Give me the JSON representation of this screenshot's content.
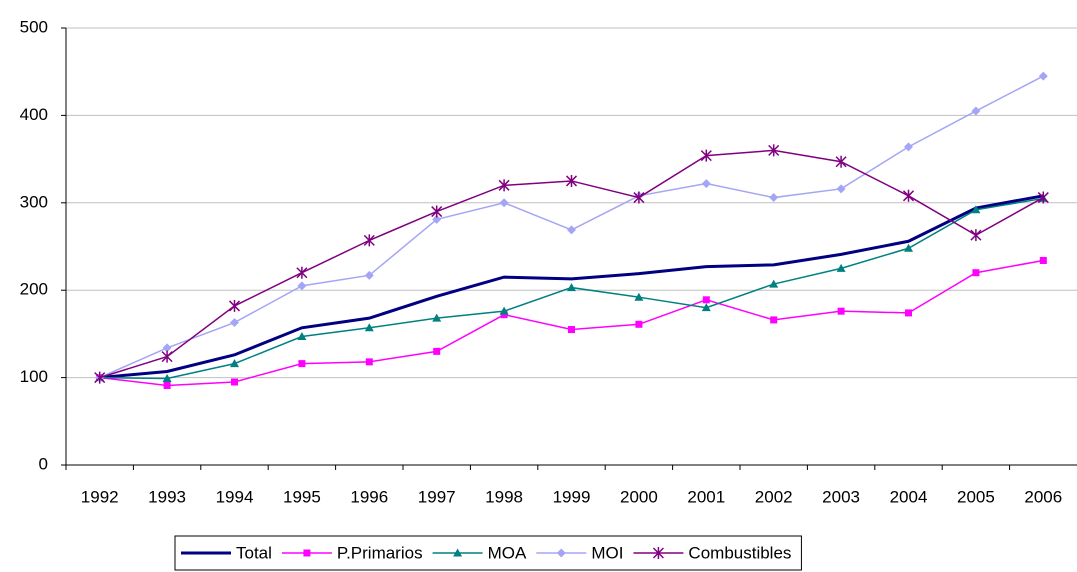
{
  "chart_data": {
    "type": "line",
    "categories": [
      "1992",
      "1993",
      "1994",
      "1995",
      "1996",
      "1997",
      "1998",
      "1999",
      "2000",
      "2001",
      "2002",
      "2003",
      "2004",
      "2005",
      "2006"
    ],
    "series": [
      {
        "name": "Total",
        "color": "#000080",
        "marker": "none",
        "values": [
          100,
          107,
          126,
          157,
          168,
          193,
          215,
          213,
          219,
          227,
          229,
          241,
          256,
          294,
          308
        ]
      },
      {
        "name": "P.Primarios",
        "color": "#ff00ff",
        "marker": "square",
        "values": [
          100,
          91,
          95,
          116,
          118,
          130,
          172,
          155,
          161,
          189,
          166,
          176,
          174,
          220,
          234
        ]
      },
      {
        "name": "MOA",
        "color": "#008080",
        "marker": "triangle",
        "values": [
          100,
          99,
          116,
          147,
          157,
          168,
          176,
          203,
          192,
          180,
          207,
          225,
          248,
          292,
          305
        ]
      },
      {
        "name": "MOI",
        "color": "#a5a5f5",
        "marker": "diamond",
        "values": [
          100,
          134,
          163,
          205,
          217,
          281,
          300,
          269,
          308,
          322,
          306,
          316,
          364,
          405,
          445
        ]
      },
      {
        "name": "Combustibles",
        "color": "#800080",
        "marker": "asterisk",
        "values": [
          100,
          124,
          182,
          220,
          257,
          290,
          320,
          325,
          306,
          354,
          360,
          347,
          308,
          263,
          306
        ]
      }
    ],
    "ylim": [
      0,
      500
    ],
    "yticks": [
      0,
      100,
      200,
      300,
      400,
      500
    ],
    "grid": true,
    "legend": "bottom"
  }
}
